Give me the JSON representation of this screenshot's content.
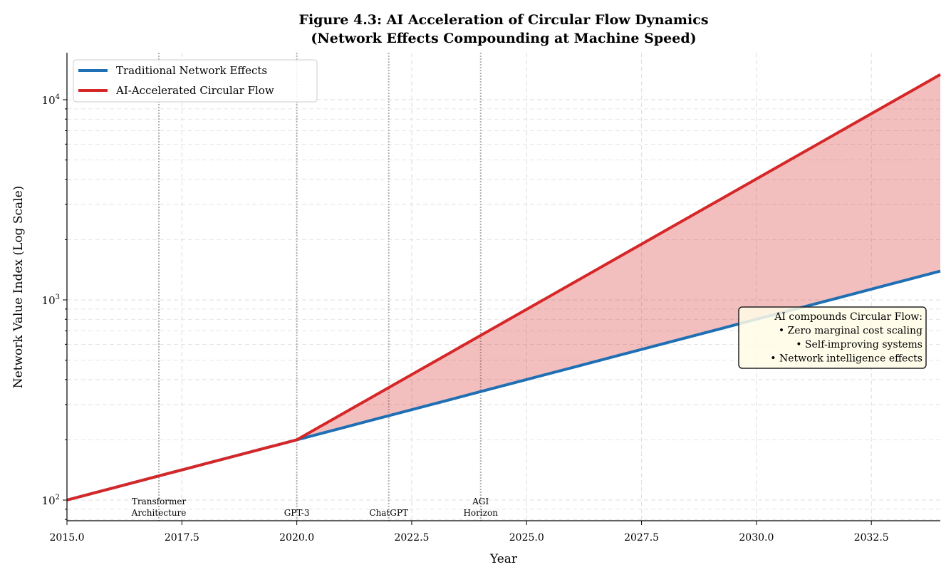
{
  "chart_data": {
    "type": "line",
    "title": "Figure 4.3: AI Acceleration of Circular Flow Dynamics",
    "subtitle": "(Network Effects Compounding at Machine Speed)",
    "xlabel": "Year",
    "ylabel": "Network Value Index (Log Scale)",
    "xlim": [
      2015,
      2034
    ],
    "ylim": [
      79,
      17000
    ],
    "yscale": "log",
    "grid": true,
    "legend": "top-left",
    "x_ticks": [
      "2015.0",
      "2017.5",
      "2020.0",
      "2022.5",
      "2025.0",
      "2027.5",
      "2030.0",
      "2032.5"
    ],
    "y_ticks": [
      {
        "base": "10",
        "exp": "2"
      },
      {
        "base": "10",
        "exp": "3"
      },
      {
        "base": "10",
        "exp": "4"
      }
    ],
    "x": [
      2015,
      2016,
      2017,
      2018,
      2019,
      2020,
      2021,
      2022,
      2023,
      2024,
      2025,
      2026,
      2027,
      2028,
      2029,
      2030,
      2031,
      2032,
      2033,
      2034
    ],
    "series": [
      {
        "name": "Traditional Network Effects",
        "color": "#1f6fb4",
        "values": [
          100,
          114.9,
          132.0,
          151.6,
          174.1,
          200,
          229.7,
          263.9,
          303.1,
          348.2,
          400,
          459.5,
          527.8,
          606.3,
          696.4,
          800,
          918.9,
          1055.6,
          1212.6,
          1392.9
        ]
      },
      {
        "name": "AI-Accelerated Circular Flow",
        "color": "#d62728",
        "values": [
          100,
          114.9,
          132.0,
          151.6,
          174.1,
          200,
          270,
          364.5,
          492.1,
          664.3,
          896.8,
          1210.7,
          1634.5,
          2206.6,
          2978.9,
          4021.5,
          5429.0,
          7329.2,
          9894.4,
          13357.4
        ]
      }
    ],
    "fill_between": {
      "color": "#d62728"
    },
    "events": [
      {
        "year": 2017,
        "lines": [
          "Transformer",
          "Architecture"
        ]
      },
      {
        "year": 2020,
        "lines": [
          "GPT-3"
        ]
      },
      {
        "year": 2022,
        "lines": [
          "ChatGPT"
        ]
      },
      {
        "year": 2024,
        "lines": [
          "AGI",
          "Horizon"
        ]
      }
    ],
    "annotation": {
      "lines": [
        "AI compounds Circular Flow:",
        "• Zero marginal cost scaling",
        "• Self-improving systems",
        "• Network intelligence effects"
      ],
      "background": "#fffde6"
    }
  }
}
